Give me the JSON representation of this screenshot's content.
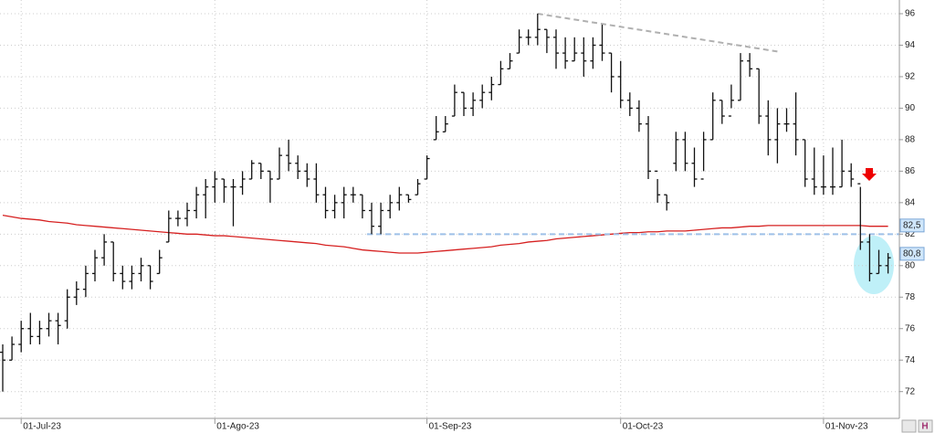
{
  "chart_data": {
    "type": "ohlc",
    "categories": [
      null,
      null,
      "01-Jul-23",
      null,
      null,
      null,
      null,
      null,
      null,
      null,
      null,
      null,
      null,
      null,
      null,
      null,
      null,
      null,
      null,
      null,
      null,
      null,
      null,
      "01-Ago-23",
      null,
      null,
      null,
      null,
      null,
      null,
      null,
      null,
      null,
      null,
      null,
      null,
      null,
      null,
      null,
      null,
      null,
      null,
      null,
      null,
      null,
      null,
      "01-Sep-23",
      null,
      null,
      null,
      null,
      null,
      null,
      null,
      null,
      null,
      null,
      null,
      null,
      null,
      null,
      null,
      null,
      null,
      null,
      null,
      null,
      "01-Oct-23",
      null,
      null,
      null,
      null,
      null,
      null,
      null,
      null,
      null,
      null,
      null,
      null,
      null,
      null,
      null,
      null,
      null,
      null,
      null,
      null,
      null,
      "01-Nov-23",
      null,
      null,
      null,
      null,
      null,
      null,
      null
    ],
    "bars": [
      [
        74.5,
        75,
        72,
        74
      ],
      [
        74,
        75.5,
        74,
        75
      ],
      [
        75,
        76.5,
        74.5,
        76
      ],
      [
        76,
        77,
        75,
        75.5
      ],
      [
        75.5,
        76.5,
        75,
        76
      ],
      [
        76,
        77,
        75.5,
        76.5
      ],
      [
        76.5,
        77,
        75,
        76.2
      ],
      [
        76.5,
        78.5,
        76,
        78
      ],
      [
        78,
        79,
        77.5,
        78.5
      ],
      [
        78.5,
        80,
        78,
        79.5
      ],
      [
        79.5,
        81,
        79,
        80.5
      ],
      [
        80.5,
        82,
        80,
        81.5
      ],
      [
        81.5,
        81.5,
        79,
        79.5
      ],
      [
        79.5,
        80,
        78.5,
        79
      ],
      [
        79,
        80,
        78.5,
        79.5
      ],
      [
        79.5,
        80.5,
        79,
        80
      ],
      [
        80,
        80,
        78.5,
        79
      ],
      [
        79.5,
        81,
        79.5,
        80.5
      ],
      [
        81.5,
        83.5,
        81.5,
        83
      ],
      [
        83,
        83.5,
        82.5,
        83
      ],
      [
        83,
        84,
        82.5,
        83.5
      ],
      [
        83.5,
        85,
        83,
        84.5
      ],
      [
        84.5,
        85.5,
        83,
        85
      ],
      [
        85,
        86,
        84,
        85.5
      ],
      [
        85.5,
        85.5,
        84,
        85
      ],
      [
        85,
        85.5,
        82.5,
        85
      ],
      [
        85,
        86,
        84.5,
        85.5
      ],
      [
        85.5,
        86.7,
        85.5,
        86.5
      ],
      [
        86.5,
        86.5,
        85.5,
        86
      ],
      [
        86,
        86,
        84,
        85.5
      ],
      [
        85.5,
        87.5,
        85.5,
        87
      ],
      [
        87,
        88,
        86,
        86.5
      ],
      [
        86.5,
        87,
        85.5,
        86
      ],
      [
        86,
        86.5,
        85,
        85.5
      ],
      [
        85.5,
        86.5,
        84,
        84.5
      ],
      [
        84.5,
        85,
        83,
        83.5
      ],
      [
        83.5,
        84.5,
        83,
        84
      ],
      [
        84,
        85,
        83,
        84.5
      ],
      [
        84.5,
        85,
        84,
        84.5
      ],
      [
        84.5,
        84.5,
        83,
        83.5
      ],
      [
        83.5,
        84,
        82,
        82.5
      ],
      [
        82.5,
        84,
        82,
        83.5
      ],
      [
        83.5,
        84.5,
        83,
        84
      ],
      [
        84,
        85,
        83.5,
        84.5
      ],
      [
        84.5,
        84.5,
        84,
        84.2
      ],
      [
        84.5,
        85.5,
        84.5,
        85.2
      ],
      [
        85.5,
        87,
        85.5,
        86.8
      ],
      [
        88,
        89.5,
        88,
        88.5
      ],
      [
        88.5,
        89.5,
        88.5,
        89
      ],
      [
        89.5,
        91.5,
        89.5,
        91
      ],
      [
        91,
        91,
        89.5,
        90
      ],
      [
        90,
        91,
        89.5,
        90.5
      ],
      [
        90.5,
        91.5,
        90,
        91
      ],
      [
        91,
        92,
        90.5,
        91.5
      ],
      [
        91.5,
        93,
        91.5,
        92.5
      ],
      [
        92.5,
        93.5,
        92.5,
        93
      ],
      [
        93.5,
        95,
        93.5,
        94.5
      ],
      [
        94.5,
        95,
        94,
        94.5
      ],
      [
        94.5,
        96,
        94,
        95
      ],
      [
        95,
        95,
        93.5,
        94.5
      ],
      [
        94.5,
        95,
        92.5,
        93.5
      ],
      [
        93.5,
        94.5,
        92.5,
        93
      ],
      [
        93,
        94.5,
        93,
        93.5
      ],
      [
        93.5,
        94.5,
        92,
        93
      ],
      [
        93,
        94.5,
        92.5,
        94
      ],
      [
        94,
        95.3,
        93,
        93.5
      ],
      [
        93.5,
        93.5,
        91,
        92
      ],
      [
        92,
        93,
        90,
        90.5
      ],
      [
        90.5,
        91,
        89.5,
        90
      ],
      [
        90,
        90.5,
        88.5,
        89
      ],
      [
        89,
        89.5,
        85.5,
        86
      ],
      [
        86,
        85.5,
        84,
        84.5
      ],
      [
        84.5,
        84.5,
        83.5,
        84
      ],
      [
        86.5,
        88.5,
        86,
        88
      ],
      [
        88,
        88.5,
        86,
        86.5
      ],
      [
        86.5,
        87.5,
        85,
        85.5
      ],
      [
        85.5,
        88.5,
        86,
        88
      ],
      [
        88,
        91,
        88,
        90.5
      ],
      [
        90.5,
        90.5,
        89,
        89.5
      ],
      [
        89.5,
        91.5,
        90,
        90.5
      ],
      [
        90.5,
        93.5,
        90.5,
        93
      ],
      [
        93,
        93.5,
        92,
        92.5
      ],
      [
        92.5,
        92.5,
        89,
        89.5
      ],
      [
        89.5,
        90.5,
        87,
        88
      ],
      [
        88,
        90,
        86.5,
        89
      ],
      [
        89,
        90,
        88.5,
        89
      ],
      [
        89,
        91,
        87,
        88
      ],
      [
        88,
        88,
        85,
        85.5
      ],
      [
        85.5,
        87.5,
        84.5,
        85
      ],
      [
        85,
        87,
        84.5,
        85
      ],
      [
        85,
        87.5,
        84.5,
        85
      ],
      [
        85,
        88,
        85,
        86
      ],
      [
        86,
        86.5,
        85,
        85.5
      ],
      [
        85.2,
        85,
        81,
        81.5
      ],
      [
        81.5,
        82,
        79,
        79.5
      ],
      [
        79.5,
        81,
        79.5,
        80
      ],
      [
        80,
        80.8,
        79.5,
        80.5
      ]
    ],
    "ma": {
      "color": "#d62020",
      "values": [
        83.2,
        83.1,
        83.0,
        82.95,
        82.9,
        82.8,
        82.75,
        82.7,
        82.6,
        82.55,
        82.5,
        82.45,
        82.4,
        82.35,
        82.3,
        82.25,
        82.2,
        82.15,
        82.1,
        82.05,
        82.0,
        82.0,
        81.95,
        81.9,
        81.9,
        81.85,
        81.8,
        81.75,
        81.7,
        81.65,
        81.6,
        81.55,
        81.5,
        81.45,
        81.4,
        81.3,
        81.25,
        81.2,
        81.1,
        81.0,
        80.95,
        80.9,
        80.85,
        80.8,
        80.8,
        80.8,
        80.85,
        80.9,
        80.95,
        81.0,
        81.05,
        81.1,
        81.15,
        81.2,
        81.3,
        81.35,
        81.4,
        81.5,
        81.55,
        81.6,
        81.7,
        81.75,
        81.8,
        81.85,
        81.9,
        81.95,
        82.0,
        82.05,
        82.1,
        82.1,
        82.15,
        82.15,
        82.2,
        82.2,
        82.2,
        82.25,
        82.3,
        82.35,
        82.4,
        82.4,
        82.45,
        82.5,
        82.5,
        82.55,
        82.55,
        82.55,
        82.55,
        82.55,
        82.55,
        82.55,
        82.55,
        82.55,
        82.55,
        82.55,
        82.5,
        82.5,
        82.5
      ]
    },
    "trendlines": [
      {
        "color": "#b0b0b0",
        "x": [
          58,
          84
        ],
        "values": [
          96,
          93.6
        ]
      },
      {
        "color": "#9ec0e8",
        "x": [
          39.5,
          97.2
        ],
        "values": [
          82,
          82
        ]
      }
    ],
    "price_labels": [
      {
        "value": 82.55,
        "label": "82,5"
      },
      {
        "value": 80.75,
        "label": "80,8"
      }
    ],
    "ylim": [
      70.3,
      96.87
    ],
    "yticks": [
      72,
      74,
      76,
      78,
      80,
      82,
      84,
      86,
      88,
      90,
      92,
      94,
      96
    ],
    "grid": true
  }
}
